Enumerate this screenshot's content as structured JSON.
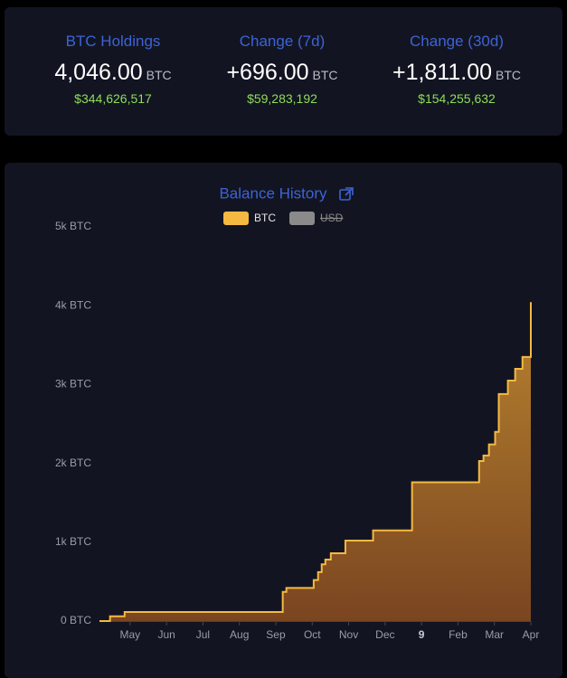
{
  "stats": [
    {
      "label": "BTC Holdings",
      "value": "4,046.00",
      "unit": "BTC",
      "usd": "$344,626,517"
    },
    {
      "label": "Change (7d)",
      "value": "+696.00",
      "unit": "BTC",
      "usd": "$59,283,192"
    },
    {
      "label": "Change (30d)",
      "value": "+1,811.00",
      "unit": "BTC",
      "usd": "$154,255,632"
    }
  ],
  "chart_data": {
    "type": "step-area",
    "title": "Balance History",
    "x": [
      0.16,
      0.45,
      0.85,
      5.19,
      5.29,
      6.04,
      6.16,
      6.26,
      6.36,
      6.51,
      6.91,
      7.67,
      8.74,
      10.58,
      10.7,
      10.85,
      11.02,
      11.12,
      11.37,
      11.57,
      11.77,
      12
    ],
    "series": [
      {
        "name": "BTC",
        "color": "#f5b942",
        "values": [
          0,
          60,
          115,
          370,
          420,
          520,
          620,
          720,
          780,
          860,
          1020,
          1150,
          1760,
          2030,
          2100,
          2240,
          2400,
          2880,
          3050,
          3200,
          3350,
          4046
        ]
      },
      {
        "name": "USD",
        "color": "#8a8a8a",
        "visible": false
      }
    ],
    "xlim": [
      0.16,
      12
    ],
    "xticks": [
      {
        "value": 1,
        "label": "May"
      },
      {
        "value": 2,
        "label": "Jun"
      },
      {
        "value": 3,
        "label": "Jul"
      },
      {
        "value": 4,
        "label": "Aug"
      },
      {
        "value": 5,
        "label": "Sep"
      },
      {
        "value": 6,
        "label": "Oct"
      },
      {
        "value": 7,
        "label": "Nov"
      },
      {
        "value": 8,
        "label": "Dec"
      },
      9,
      {
        "value": 10,
        "label": "Feb"
      },
      {
        "value": 11,
        "label": "Mar"
      },
      {
        "value": 12,
        "label": "Apr"
      }
    ],
    "ylim": [
      0,
      5000
    ],
    "yticks": [
      {
        "value": 0,
        "label": "0 BTC"
      },
      {
        "value": 1000,
        "label": "1k BTC"
      },
      {
        "value": 2000,
        "label": "2k BTC"
      },
      {
        "value": 3000,
        "label": "3k BTC"
      },
      {
        "value": 4000,
        "label": "4k BTC"
      },
      {
        "value": 5000,
        "label": "5k BTC"
      }
    ],
    "grid": false
  }
}
